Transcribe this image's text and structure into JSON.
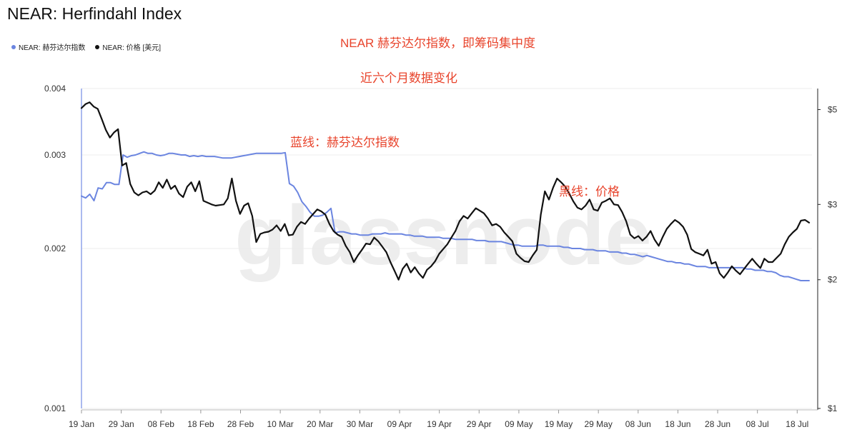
{
  "header": {
    "title": "NEAR: Herfindahl Index"
  },
  "legend": {
    "items": [
      {
        "label": "NEAR: 赫芬达尔指数",
        "color": "#6b85e0"
      },
      {
        "label": "NEAR: 价格 [美元]",
        "color": "#111111"
      }
    ]
  },
  "annotations": {
    "main_line1": "NEAR 赫芬达尔指数，即筹码集中度",
    "main_line2": "近六个月数据变化",
    "blue_label": "蓝线：赫芬达尔指数",
    "black_label": "黑线：价格"
  },
  "watermark": "glassnode",
  "chart_data": {
    "type": "line",
    "title": "NEAR: Herfindahl Index",
    "x_start": "2022-01-19",
    "x_end": "2022-07-21",
    "x_tick_labels": [
      "19 Jan",
      "29 Jan",
      "08 Feb",
      "18 Feb",
      "28 Feb",
      "10 Mar",
      "20 Mar",
      "30 Mar",
      "09 Apr",
      "19 Apr",
      "29 Apr",
      "09 May",
      "19 May",
      "29 May",
      "08 Jun",
      "18 Jun",
      "28 Jun",
      "08 Jul",
      "18 Jul"
    ],
    "y_left": {
      "scale": "log",
      "range": [
        0.001,
        0.004
      ],
      "ticks": [
        "0.001",
        "0.002",
        "0.003",
        "0.004"
      ]
    },
    "y_right": {
      "scale": "log",
      "range": [
        1,
        5.6
      ],
      "ticks": [
        "$1",
        "$2",
        "$3",
        "$5"
      ]
    },
    "grid": true,
    "series": [
      {
        "name": "NEAR: 赫芬达尔指数",
        "color": "#6b85e0",
        "axis": "left",
        "values": [
          0.00251,
          0.00249,
          0.00253,
          0.00246,
          0.0026,
          0.00259,
          0.00266,
          0.00266,
          0.00264,
          0.00264,
          0.003,
          0.00297,
          0.00299,
          0.003,
          0.00302,
          0.00304,
          0.00302,
          0.00302,
          0.003,
          0.00299,
          0.003,
          0.00302,
          0.00302,
          0.00301,
          0.003,
          0.003,
          0.00298,
          0.00299,
          0.00298,
          0.00299,
          0.00298,
          0.00298,
          0.00298,
          0.00297,
          0.00296,
          0.00296,
          0.00296,
          0.00297,
          0.00298,
          0.00299,
          0.003,
          0.00301,
          0.00302,
          0.00302,
          0.00302,
          0.00302,
          0.00302,
          0.00302,
          0.00302,
          0.00303,
          0.00265,
          0.00262,
          0.00255,
          0.00245,
          0.0024,
          0.00234,
          0.0023,
          0.0023,
          0.00231,
          0.00234,
          0.00238,
          0.00214,
          0.00215,
          0.00215,
          0.00214,
          0.00213,
          0.00213,
          0.00212,
          0.00212,
          0.00212,
          0.00213,
          0.00213,
          0.00213,
          0.00214,
          0.00213,
          0.00213,
          0.00213,
          0.00213,
          0.00212,
          0.00212,
          0.00211,
          0.00211,
          0.00211,
          0.0021,
          0.0021,
          0.0021,
          0.0021,
          0.00209,
          0.00209,
          0.00209,
          0.00208,
          0.00208,
          0.00208,
          0.00208,
          0.00208,
          0.00207,
          0.00207,
          0.00207,
          0.00206,
          0.00206,
          0.00206,
          0.00206,
          0.00205,
          0.00204,
          0.00203,
          0.00203,
          0.00202,
          0.00202,
          0.00202,
          0.00202,
          0.00203,
          0.00203,
          0.00202,
          0.00202,
          0.00202,
          0.00202,
          0.00201,
          0.00201,
          0.002,
          0.002,
          0.002,
          0.00199,
          0.00199,
          0.00199,
          0.00198,
          0.00198,
          0.00198,
          0.00197,
          0.00197,
          0.00197,
          0.00196,
          0.00196,
          0.00195,
          0.00195,
          0.00194,
          0.00193,
          0.00194,
          0.00193,
          0.00192,
          0.00191,
          0.0019,
          0.00189,
          0.00189,
          0.00188,
          0.00188,
          0.00187,
          0.00187,
          0.00186,
          0.00185,
          0.00185,
          0.00185,
          0.00184,
          0.00184,
          0.00184,
          0.00184,
          0.00184,
          0.00184,
          0.00184,
          0.00184,
          0.00184,
          0.00183,
          0.00183,
          0.00182,
          0.00182,
          0.00182,
          0.00181,
          0.00181,
          0.0018,
          0.00178,
          0.00177,
          0.00177,
          0.00176,
          0.00175,
          0.00174,
          0.00174,
          0.00174
        ]
      },
      {
        "name": "NEAR: 价格 [美元]",
        "color": "#111111",
        "axis": "right",
        "values": [
          5.04,
          5.15,
          5.2,
          5.08,
          5.02,
          4.75,
          4.48,
          4.3,
          4.42,
          4.5,
          3.7,
          3.75,
          3.35,
          3.2,
          3.15,
          3.2,
          3.22,
          3.17,
          3.23,
          3.38,
          3.28,
          3.43,
          3.26,
          3.32,
          3.18,
          3.12,
          3.3,
          3.38,
          3.22,
          3.4,
          3.06,
          3.03,
          3.0,
          2.98,
          2.99,
          3.0,
          3.1,
          3.45,
          3.06,
          2.85,
          2.98,
          3.02,
          2.82,
          2.45,
          2.56,
          2.58,
          2.59,
          2.62,
          2.68,
          2.6,
          2.7,
          2.54,
          2.55,
          2.66,
          2.73,
          2.7,
          2.78,
          2.85,
          2.92,
          2.89,
          2.84,
          2.7,
          2.6,
          2.55,
          2.52,
          2.4,
          2.32,
          2.2,
          2.28,
          2.35,
          2.43,
          2.42,
          2.51,
          2.46,
          2.39,
          2.32,
          2.2,
          2.1,
          2.0,
          2.12,
          2.18,
          2.08,
          2.14,
          2.07,
          2.02,
          2.11,
          2.15,
          2.21,
          2.3,
          2.36,
          2.42,
          2.51,
          2.6,
          2.74,
          2.82,
          2.78,
          2.86,
          2.94,
          2.9,
          2.86,
          2.78,
          2.68,
          2.7,
          2.66,
          2.58,
          2.52,
          2.46,
          2.3,
          2.25,
          2.21,
          2.2,
          2.28,
          2.35,
          2.84,
          3.22,
          3.08,
          3.28,
          3.45,
          3.38,
          3.3,
          3.18,
          3.05,
          2.95,
          2.92,
          2.98,
          3.08,
          2.92,
          2.9,
          3.03,
          3.06,
          3.1,
          3.0,
          2.99,
          2.88,
          2.74,
          2.55,
          2.5,
          2.53,
          2.47,
          2.52,
          2.6,
          2.48,
          2.4,
          2.52,
          2.63,
          2.7,
          2.76,
          2.72,
          2.66,
          2.55,
          2.36,
          2.32,
          2.3,
          2.28,
          2.35,
          2.18,
          2.2,
          2.07,
          2.02,
          2.08,
          2.15,
          2.1,
          2.06,
          2.12,
          2.18,
          2.24,
          2.18,
          2.13,
          2.24,
          2.2,
          2.2,
          2.25,
          2.3,
          2.42,
          2.52,
          2.58,
          2.63,
          2.75,
          2.76,
          2.72
        ]
      }
    ]
  }
}
